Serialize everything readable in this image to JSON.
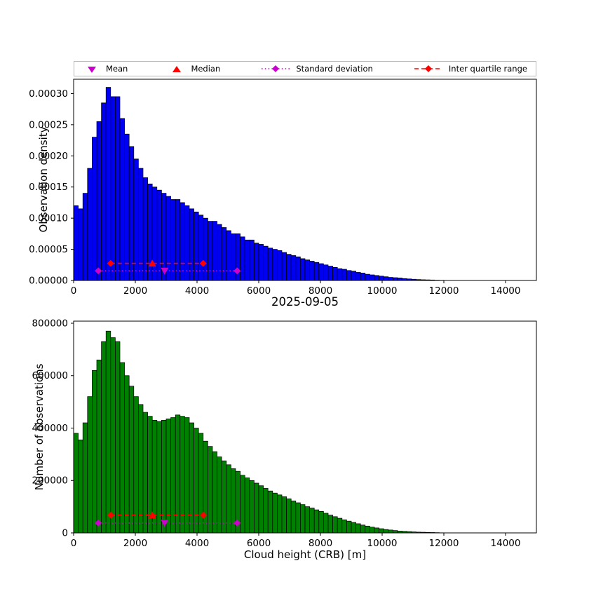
{
  "legend": {
    "items": [
      {
        "label": "Mean",
        "marker": "triangle-down",
        "color_key": "magenta"
      },
      {
        "label": "Median",
        "marker": "triangle-up",
        "color_key": "red"
      },
      {
        "label": "Standard deviation",
        "marker": "diamond-dotted-line",
        "color_key": "magenta"
      },
      {
        "label": "Inter quartile range",
        "marker": "diamond-dashed-line",
        "color_key": "red"
      }
    ]
  },
  "chart_data": {
    "type": "bar",
    "title": "2025-09-05",
    "xlabel": "Cloud height (CRB) [m]",
    "xlim": [
      0,
      15000
    ],
    "xticks": [
      0,
      2000,
      4000,
      6000,
      8000,
      10000,
      12000,
      14000
    ],
    "xtick_labels": [
      "0",
      "2000",
      "4000",
      "6000",
      "8000",
      "10000",
      "12000",
      "14000"
    ],
    "bin_start": 0,
    "bin_width": 150,
    "colors": {
      "blue": "#0000f0",
      "green": "#008000",
      "red": "#ff0000",
      "magenta": "#cc00cc",
      "black": "#000000"
    },
    "stats": {
      "mean": 2950,
      "median": 2550,
      "std_low": 800,
      "std_high": 5300,
      "q1": 1200,
      "q3": 4200
    },
    "charts": [
      {
        "name": "density-histogram",
        "ylabel": "Observation density",
        "color_key": "blue",
        "ylim": [
          0,
          0.000323
        ],
        "yticks": [
          0,
          5e-05,
          0.0001,
          0.00015,
          0.0002,
          0.00025,
          0.0003
        ],
        "ytick_labels": [
          "0.00000",
          "0.00005",
          "0.00010",
          "0.00015",
          "0.00020",
          "0.00025",
          "0.00030"
        ],
        "values": [
          0.00012,
          0.000115,
          0.00014,
          0.00018,
          0.00023,
          0.000255,
          0.000285,
          0.00031,
          0.000295,
          0.000295,
          0.00026,
          0.000235,
          0.000215,
          0.000195,
          0.00018,
          0.000165,
          0.000155,
          0.00015,
          0.000145,
          0.00014,
          0.000135,
          0.00013,
          0.00013,
          0.000125,
          0.00012,
          0.000115,
          0.00011,
          0.000105,
          0.0001,
          9.5e-05,
          9.5e-05,
          9e-05,
          8.5e-05,
          8e-05,
          7.5e-05,
          7.5e-05,
          7e-05,
          6.5e-05,
          6.5e-05,
          6e-05,
          5.8e-05,
          5.5e-05,
          5.2e-05,
          5e-05,
          4.8e-05,
          4.5e-05,
          4.2e-05,
          4e-05,
          3.8e-05,
          3.5e-05,
          3.3e-05,
          3.1e-05,
          2.9e-05,
          2.7e-05,
          2.5e-05,
          2.3e-05,
          2.1e-05,
          1.9e-05,
          1.8e-05,
          1.6e-05,
          1.5e-05,
          1.3e-05,
          1.2e-05,
          1e-05,
          9e-06,
          8e-06,
          7e-06,
          6e-06,
          5e-06,
          4.5e-06,
          4e-06,
          3e-06,
          2.5e-06,
          2e-06,
          1.5e-06,
          1.2e-06,
          1e-06,
          8e-07,
          5e-07,
          3e-07
        ],
        "markers": {
          "std": {
            "x1": 800,
            "x2": 5300,
            "mean_x": 2950,
            "y": 1.55e-05
          },
          "iqr": {
            "x1": 1200,
            "x2": 4200,
            "median_x": 2550,
            "y": 2.75e-05
          }
        }
      },
      {
        "name": "count-histogram",
        "ylabel": "Number of observations",
        "color_key": "green",
        "ylim": [
          0,
          808000
        ],
        "yticks": [
          0,
          200000,
          400000,
          600000,
          800000
        ],
        "ytick_labels": [
          "0",
          "200000",
          "400000",
          "600000",
          "800000"
        ],
        "values": [
          380000,
          355000,
          420000,
          520000,
          620000,
          660000,
          730000,
          770000,
          745000,
          730000,
          650000,
          600000,
          560000,
          520000,
          490000,
          460000,
          445000,
          430000,
          425000,
          430000,
          435000,
          440000,
          450000,
          445000,
          440000,
          420000,
          400000,
          380000,
          350000,
          330000,
          310000,
          290000,
          275000,
          260000,
          245000,
          235000,
          220000,
          210000,
          200000,
          190000,
          180000,
          170000,
          160000,
          152000,
          145000,
          138000,
          130000,
          122000,
          115000,
          108000,
          100000,
          95000,
          88000,
          82000,
          75000,
          68000,
          62000,
          56000,
          50000,
          45000,
          40000,
          35000,
          30000,
          26000,
          22000,
          19000,
          16000,
          13000,
          11000,
          9000,
          7000,
          6000,
          5000,
          4000,
          3000,
          2500,
          2000,
          1500,
          1000,
          500
        ],
        "markers": {
          "std": {
            "x1": 800,
            "x2": 5300,
            "mean_x": 2950,
            "y": 38000
          },
          "iqr": {
            "x1": 1200,
            "x2": 4200,
            "median_x": 2550,
            "y": 68000
          }
        }
      }
    ]
  }
}
